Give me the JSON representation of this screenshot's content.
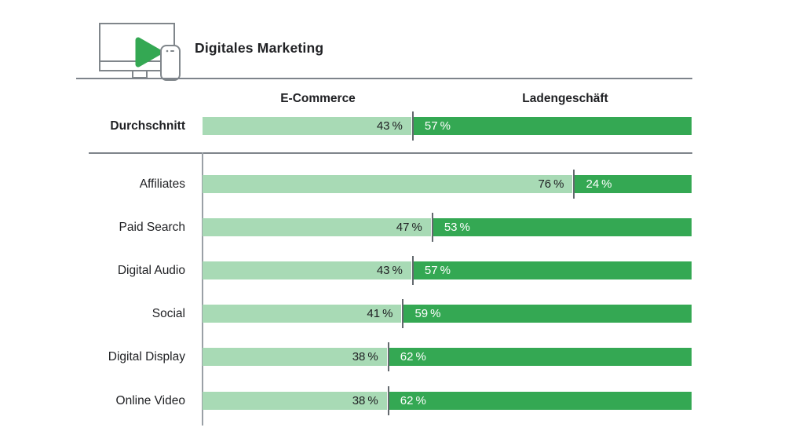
{
  "header": {
    "title": "Digitales Marketing",
    "icon": "video-player-devices-icon"
  },
  "columns": {
    "left": "E-Commerce",
    "right": "Ladengeschäft"
  },
  "value_suffix": " %",
  "colors": {
    "ecommerce_light_green": "#a8dab5",
    "ladengeschaeft_dark_green": "#34a853",
    "divider_gray": "#63696e",
    "rule_gray": "#7e848b",
    "text_dark": "#202124",
    "text_on_dark": "#ffffff",
    "icon_green": "#34a853"
  },
  "chart_data": {
    "type": "bar",
    "orientation": "horizontal",
    "stacked": true,
    "unit": "%",
    "title": "Digitales Marketing",
    "series_names": [
      "E-Commerce",
      "Ladengeschäft"
    ],
    "legend_position": "top",
    "grid": false,
    "xlim": [
      0,
      100
    ],
    "average": {
      "label": "Durchschnitt",
      "values": [
        43,
        57
      ]
    },
    "rows": [
      {
        "label": "Affiliates",
        "values": [
          76,
          24
        ]
      },
      {
        "label": "Paid Search",
        "values": [
          47,
          53
        ]
      },
      {
        "label": "Digital Audio",
        "values": [
          43,
          57
        ]
      },
      {
        "label": "Social",
        "values": [
          41,
          59
        ]
      },
      {
        "label": "Digital Display",
        "values": [
          38,
          62
        ]
      },
      {
        "label": "Online Video",
        "values": [
          38,
          62
        ]
      }
    ]
  }
}
